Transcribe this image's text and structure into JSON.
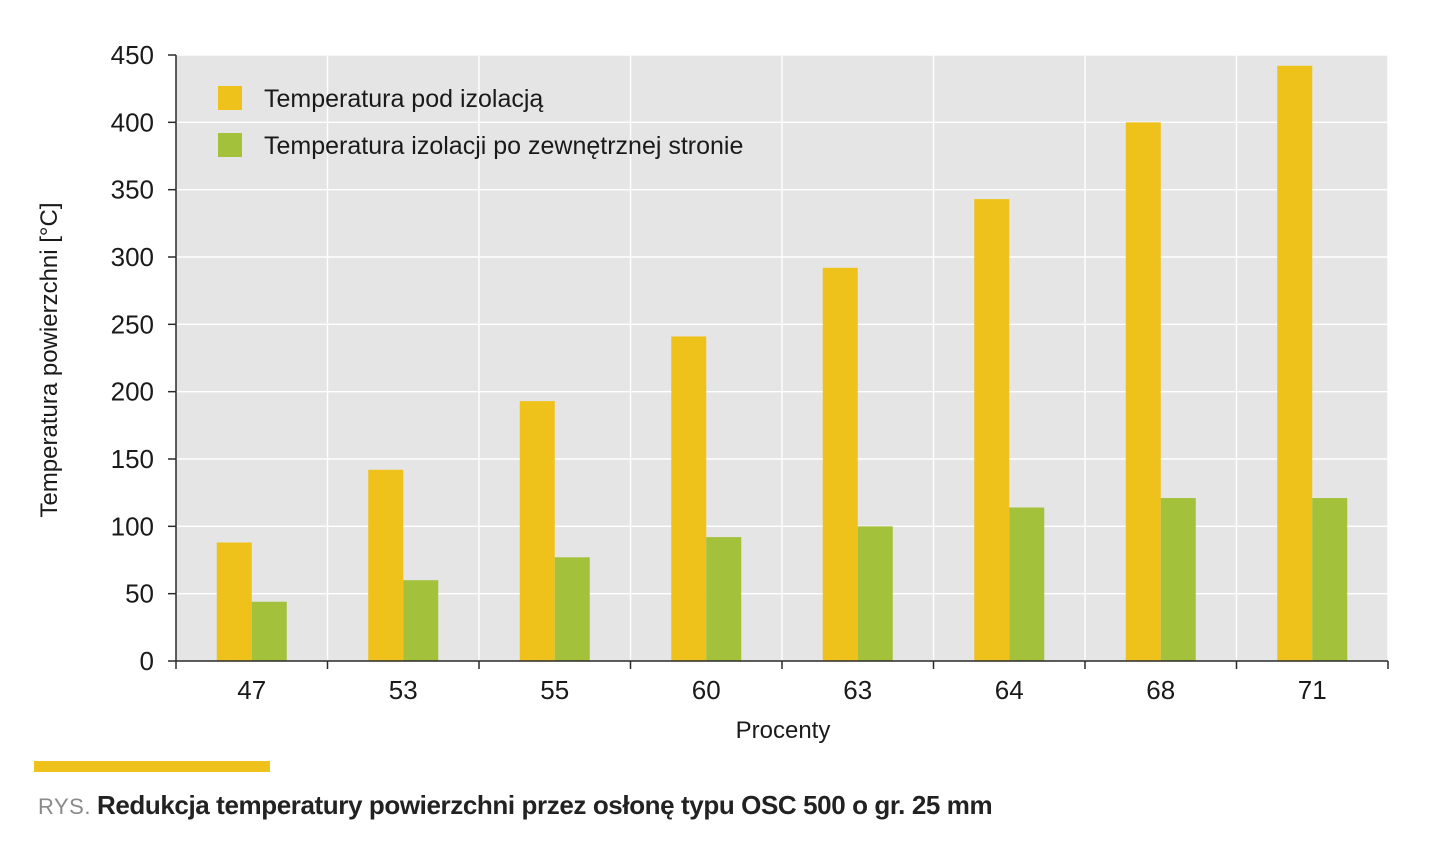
{
  "chart_data": {
    "type": "bar",
    "categories": [
      "47",
      "53",
      "55",
      "60",
      "63",
      "64",
      "68",
      "71"
    ],
    "series": [
      {
        "name": "Temperatura pod izolacją",
        "color": "#eec21b",
        "values": [
          88,
          142,
          193,
          241,
          292,
          343,
          400,
          442
        ]
      },
      {
        "name": "Temperatura izolacji po zewnętrznej stronie",
        "color": "#a3c13b",
        "values": [
          44,
          60,
          77,
          92,
          100,
          114,
          121,
          121
        ]
      }
    ],
    "xlabel": "Procenty",
    "ylabel": "Temperatura powierzchni [°C]",
    "ylim": [
      0,
      450
    ],
    "yticks": [
      "0",
      "50",
      "100",
      "150",
      "200",
      "250",
      "300",
      "350",
      "400",
      "450"
    ],
    "grid": true,
    "legend_position": "top-left",
    "plot_background": "#e5e5e5",
    "grid_color": "#ffffff"
  },
  "caption": {
    "prefix": "RYS.",
    "text": "Redukcja temperatury powierzchni przez osłonę typu OSC 500 o gr. 25 mm",
    "bar_color": "#eec21b"
  }
}
